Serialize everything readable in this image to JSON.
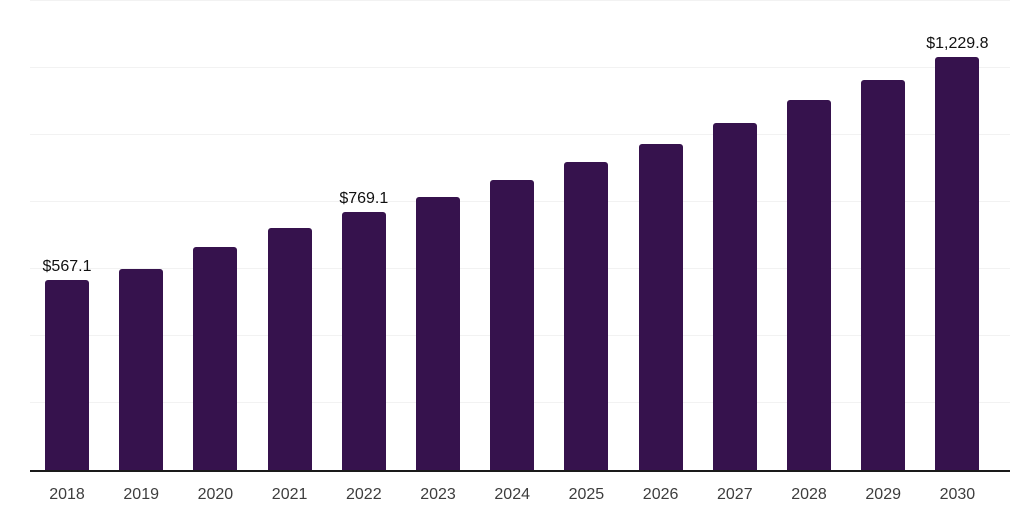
{
  "chart_data": {
    "type": "bar",
    "title": "",
    "xlabel": "",
    "ylabel": "",
    "categories": [
      "2018",
      "2019",
      "2020",
      "2021",
      "2022",
      "2023",
      "2024",
      "2025",
      "2026",
      "2027",
      "2028",
      "2029",
      "2030"
    ],
    "values": [
      567.1,
      597.6,
      665.4,
      721.8,
      769.1,
      813.5,
      863.7,
      917.0,
      970.2,
      1032.4,
      1103.3,
      1162.4,
      1229.8
    ],
    "labeled_points": [
      {
        "index": 0,
        "label": "$567.1"
      },
      {
        "index": 4,
        "label": "$769.1"
      },
      {
        "index": 12,
        "label": "$1,229.8"
      }
    ],
    "ylim": [
      0,
      1400
    ],
    "gridline_values": [
      200,
      400,
      600,
      800,
      1000,
      1200,
      1400
    ],
    "grid": "horizontal-only",
    "legend_position": "none",
    "y_axis_tick_labels_visible": false,
    "colors": {
      "bar": "#36124D",
      "axis_line": "#1a1a1a",
      "gridline": "#f2f2f2",
      "value_label": "#111111",
      "tick_label": "#3d3d3d",
      "background": "#ffffff"
    }
  }
}
